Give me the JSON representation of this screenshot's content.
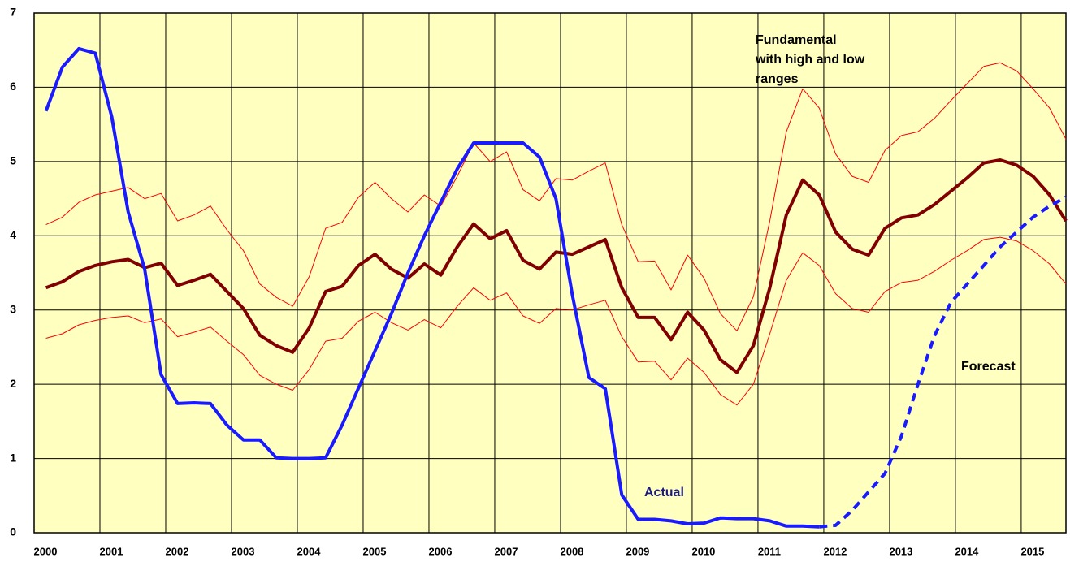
{
  "chart_data": {
    "type": "line",
    "x": [
      2000.18,
      2000.43,
      2000.68,
      2000.93,
      2001.18,
      2001.43,
      2001.68,
      2001.93,
      2002.18,
      2002.43,
      2002.68,
      2002.93,
      2003.18,
      2003.43,
      2003.68,
      2003.93,
      2004.18,
      2004.43,
      2004.68,
      2004.93,
      2005.18,
      2005.43,
      2005.68,
      2005.93,
      2006.18,
      2006.43,
      2006.68,
      2006.93,
      2007.18,
      2007.43,
      2007.68,
      2007.93,
      2008.18,
      2008.43,
      2008.68,
      2008.93,
      2009.18,
      2009.43,
      2009.68,
      2009.93,
      2010.18,
      2010.43,
      2010.68,
      2010.93,
      2011.18,
      2011.43,
      2011.68,
      2011.93,
      2012.18,
      2012.43,
      2012.68,
      2012.93,
      2013.18,
      2013.43,
      2013.68,
      2013.93,
      2014.18,
      2014.43,
      2014.68,
      2014.93,
      2015.18,
      2015.43,
      2015.68
    ],
    "series": [
      {
        "color": "#ff0000",
        "width": 1,
        "values": [
          4.15,
          4.25,
          4.45,
          4.55,
          4.6,
          4.65,
          4.5,
          4.57,
          4.2,
          4.28,
          4.4,
          4.08,
          3.8,
          3.35,
          3.17,
          3.05,
          3.45,
          4.1,
          4.18,
          4.52,
          4.72,
          4.5,
          4.32,
          4.55,
          4.4,
          4.8,
          5.25,
          5.0,
          5.13,
          4.62,
          4.47,
          4.77,
          4.75,
          4.87,
          4.98,
          4.15,
          3.65,
          3.66,
          3.27,
          3.74,
          3.43,
          2.95,
          2.72,
          3.18,
          4.2,
          5.4,
          5.98,
          5.72,
          5.1,
          4.8,
          4.72,
          5.15,
          5.35,
          5.4,
          5.58,
          5.82,
          6.05,
          6.28,
          6.33,
          6.22,
          5.98,
          5.72,
          5.3
        ]
      },
      {
        "color": "#ff0000",
        "width": 1,
        "values": [
          2.62,
          2.68,
          2.8,
          2.86,
          2.9,
          2.92,
          2.83,
          2.88,
          2.64,
          2.7,
          2.77,
          2.58,
          2.4,
          2.12,
          2.0,
          1.92,
          2.2,
          2.58,
          2.62,
          2.85,
          2.97,
          2.83,
          2.73,
          2.87,
          2.76,
          3.05,
          3.3,
          3.13,
          3.23,
          2.92,
          2.82,
          3.02,
          3.0,
          3.07,
          3.13,
          2.64,
          2.3,
          2.31,
          2.06,
          2.35,
          2.16,
          1.86,
          1.72,
          2.0,
          2.68,
          3.4,
          3.77,
          3.6,
          3.22,
          3.02,
          2.97,
          3.25,
          3.37,
          3.4,
          3.52,
          3.67,
          3.8,
          3.95,
          3.98,
          3.93,
          3.8,
          3.62,
          3.35
        ]
      },
      {
        "color": "#800000",
        "width": 4,
        "values": [
          3.3,
          3.38,
          3.52,
          3.6,
          3.65,
          3.68,
          3.57,
          3.63,
          3.33,
          3.4,
          3.48,
          3.25,
          3.02,
          2.66,
          2.52,
          2.43,
          2.76,
          3.25,
          3.32,
          3.6,
          3.75,
          3.55,
          3.43,
          3.62,
          3.47,
          3.85,
          4.16,
          3.96,
          4.07,
          3.67,
          3.55,
          3.78,
          3.75,
          3.85,
          3.95,
          3.3,
          2.9,
          2.9,
          2.6,
          2.97,
          2.73,
          2.33,
          2.16,
          2.52,
          3.3,
          4.28,
          4.75,
          4.55,
          4.05,
          3.82,
          3.74,
          4.1,
          4.24,
          4.28,
          4.42,
          4.6,
          4.78,
          4.98,
          5.02,
          4.95,
          4.8,
          4.55,
          4.2
        ]
      },
      {
        "name": "Actual",
        "color": "#1a1aff",
        "width": 4,
        "values": [
          5.68,
          6.27,
          6.52,
          6.46,
          5.6,
          4.32,
          3.55,
          2.13,
          1.74,
          1.75,
          1.74,
          1.45,
          1.25,
          1.25,
          1.01,
          1.0,
          1.0,
          1.01,
          1.45,
          1.95,
          2.45,
          2.95,
          3.5,
          4.0,
          4.45,
          4.9,
          5.25,
          5.25,
          5.25,
          5.25,
          5.06,
          4.5,
          3.2,
          2.09,
          1.94,
          0.51,
          0.18,
          0.18,
          0.16,
          0.12,
          0.13,
          0.2,
          0.19,
          0.19,
          0.16,
          0.09,
          0.09,
          0.08,
          null,
          null,
          null,
          null,
          null,
          null,
          null,
          null,
          null,
          null,
          null,
          null,
          null,
          null,
          null
        ]
      },
      {
        "name": "Forecast",
        "color": "#1a1aff",
        "width": 4,
        "dashed": true,
        "values": [
          null,
          null,
          null,
          null,
          null,
          null,
          null,
          null,
          null,
          null,
          null,
          null,
          null,
          null,
          null,
          null,
          null,
          null,
          null,
          null,
          null,
          null,
          null,
          null,
          null,
          null,
          null,
          null,
          null,
          null,
          null,
          null,
          null,
          null,
          null,
          null,
          null,
          null,
          null,
          null,
          null,
          null,
          null,
          null,
          null,
          null,
          null,
          0.08,
          0.1,
          0.3,
          0.55,
          0.8,
          1.3,
          2.0,
          2.65,
          3.1,
          3.35,
          3.6,
          3.85,
          4.05,
          4.25,
          4.4,
          4.52
        ]
      }
    ],
    "annotation_lines": [
      "Fundamental",
      "with high and low",
      "ranges"
    ],
    "xlim": [
      2000,
      2015.68
    ],
    "xticks": [
      2000,
      2001,
      2002,
      2003,
      2004,
      2005,
      2006,
      2007,
      2008,
      2009,
      2010,
      2011,
      2012,
      2013,
      2014,
      2015
    ],
    "ylim": [
      0,
      7
    ],
    "yticks": [
      0,
      1,
      2,
      3,
      4,
      5,
      6,
      7
    ],
    "grid": true,
    "background": "#ffffc0"
  }
}
